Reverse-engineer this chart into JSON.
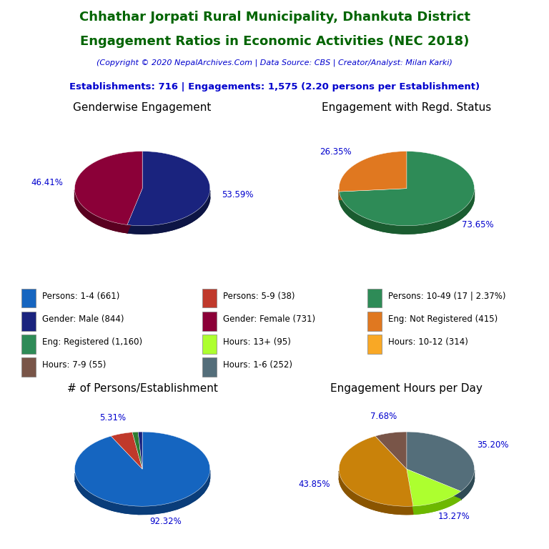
{
  "title_line1": "Chhathar Jorpati Rural Municipality, Dhankuta District",
  "title_line2": "Engagement Ratios in Economic Activities (NEC 2018)",
  "title_color": "#006400",
  "copyright_text": "(Copyright © 2020 NepalArchives.Com | Data Source: CBS | Creator/Analyst: Milan Karki)",
  "copyright_color": "#0000CD",
  "stats_text": "Establishments: 716 | Engagements: 1,575 (2.20 persons per Establishment)",
  "stats_color": "#0000CD",
  "pie1_title": "Genderwise Engagement",
  "pie1_values": [
    53.59,
    46.41
  ],
  "pie1_colors": [
    "#1a237e",
    "#8B0038"
  ],
  "pie1_dark_colors": [
    "#0d1545",
    "#5a0020"
  ],
  "pie1_labels": [
    "53.59%",
    "46.41%"
  ],
  "pie2_title": "Engagement with Regd. Status",
  "pie2_values": [
    73.65,
    26.35
  ],
  "pie2_colors": [
    "#2e8b57",
    "#e07820"
  ],
  "pie2_dark_colors": [
    "#1a5c30",
    "#a05010"
  ],
  "pie2_labels": [
    "73.65%",
    "26.35%"
  ],
  "pie3_title": "# of Persons/Establishment",
  "pie3_values": [
    92.32,
    5.31,
    1.37,
    1.0
  ],
  "pie3_colors": [
    "#1565C0",
    "#c0392b",
    "#2e7d32",
    "#1a237e"
  ],
  "pie3_dark_colors": [
    "#0a3d7a",
    "#7a1f1a",
    "#1a4d1f",
    "#0d1545"
  ],
  "pie3_labels": [
    "92.32%",
    "5.31%",
    "",
    ""
  ],
  "pie4_title": "Engagement Hours per Day",
  "pie4_values": [
    35.2,
    13.27,
    43.85,
    7.68
  ],
  "pie4_colors": [
    "#546e7a",
    "#adff2f",
    "#c9820a",
    "#795548"
  ],
  "pie4_dark_colors": [
    "#2e4a54",
    "#6db800",
    "#8a5500",
    "#4a2f20"
  ],
  "pie4_labels": [
    "35.20%",
    "13.27%",
    "43.85%",
    "7.68%"
  ],
  "legend_items": [
    {
      "label": "Persons: 1-4 (661)",
      "color": "#1565C0"
    },
    {
      "label": "Persons: 5-9 (38)",
      "color": "#c0392b"
    },
    {
      "label": "Persons: 10-49 (17 | 2.37%)",
      "color": "#2e8b57"
    },
    {
      "label": "Gender: Male (844)",
      "color": "#1a237e"
    },
    {
      "label": "Gender: Female (731)",
      "color": "#8B0038"
    },
    {
      "label": "Eng: Not Registered (415)",
      "color": "#e07820"
    },
    {
      "label": "Eng: Registered (1,160)",
      "color": "#2e8b57"
    },
    {
      "label": "Hours: 13+ (95)",
      "color": "#adff2f"
    },
    {
      "label": "Hours: 10-12 (314)",
      "color": "#f9a825"
    },
    {
      "label": "Hours: 7-9 (55)",
      "color": "#795548"
    },
    {
      "label": "Hours: 1-6 (252)",
      "color": "#546e7a"
    }
  ],
  "label_color": "#0000CD",
  "title_fontsize": 13,
  "pie_title_fontsize": 11,
  "pct_fontsize": 8.5,
  "legend_fontsize": 8.5
}
